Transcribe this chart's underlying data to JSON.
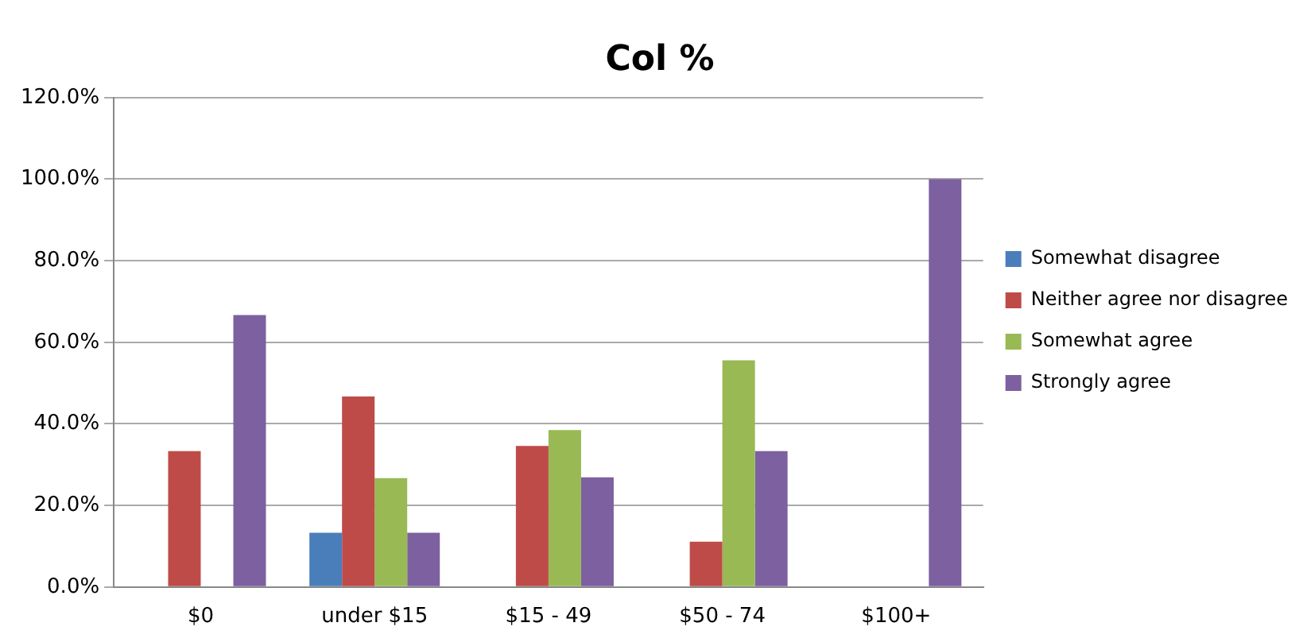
{
  "chart_data": {
    "type": "bar",
    "title": "Col %",
    "categories": [
      "$0",
      "under $15",
      "$15 - 49",
      "$50 - 74",
      "$100+"
    ],
    "series": [
      {
        "name": "Somewhat disagree",
        "color": "#4a7ebb",
        "values": [
          null,
          13.3,
          null,
          null,
          null
        ]
      },
      {
        "name": "Neither agree nor disagree",
        "color": "#be4b48",
        "values": [
          33.3,
          46.7,
          34.6,
          11.1,
          null
        ]
      },
      {
        "name": "Somewhat agree",
        "color": "#98b954",
        "values": [
          null,
          26.7,
          38.5,
          55.6,
          null
        ]
      },
      {
        "name": "Strongly agree",
        "color": "#7d60a0",
        "values": [
          66.7,
          13.3,
          26.9,
          33.3,
          100
        ]
      }
    ],
    "ylim": [
      0,
      120
    ],
    "yticks": [
      {
        "value": 0,
        "label": "0.0%"
      },
      {
        "value": 20,
        "label": "20.0%"
      },
      {
        "value": 40,
        "label": "40.0%"
      },
      {
        "value": 60,
        "label": "60.0%"
      },
      {
        "value": 80,
        "label": "80.0%"
      },
      {
        "value": 100,
        "label": "100.0%"
      },
      {
        "value": 120,
        "label": "120.0%"
      }
    ],
    "grid": "y",
    "legend": "right"
  }
}
